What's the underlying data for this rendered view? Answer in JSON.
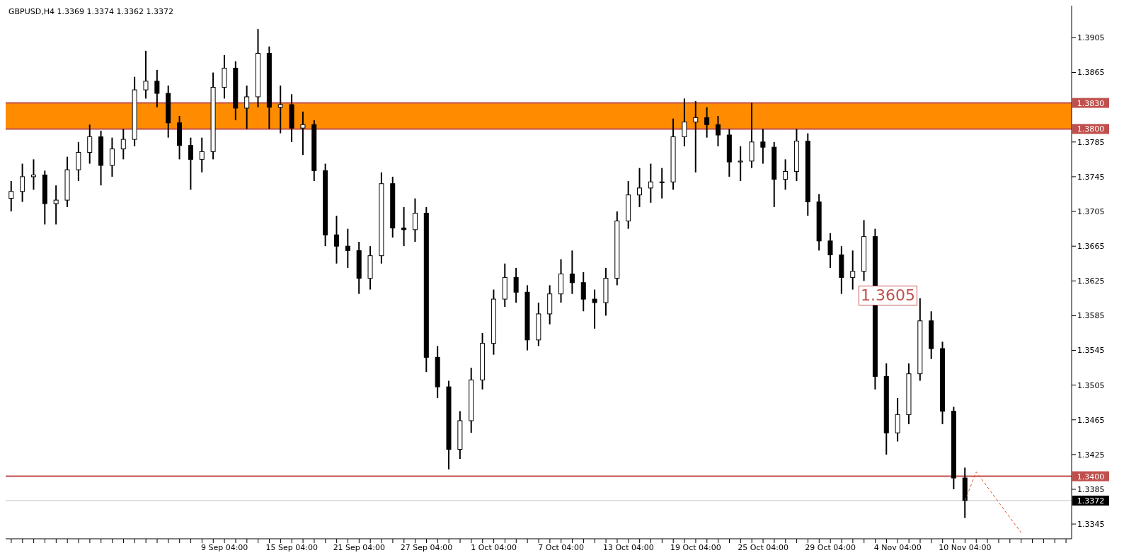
{
  "chart_data": {
    "type": "candlestick",
    "title": "GBPUSD,H4  1.3369 1.3374 1.3362 1.3372",
    "categories": [
      null,
      null,
      null,
      null,
      null,
      null,
      null,
      null,
      null,
      null,
      null,
      null,
      null,
      null,
      null,
      null,
      null,
      null,
      null,
      "9 Sep 04:00",
      null,
      null,
      null,
      null,
      null,
      "15 Sep 04:00",
      null,
      null,
      null,
      null,
      null,
      "21 Sep 04:00",
      null,
      null,
      null,
      null,
      null,
      "27 Sep 04:00",
      null,
      null,
      null,
      null,
      null,
      "1 Oct 04:00",
      null,
      null,
      null,
      null,
      null,
      "7 Oct 04:00",
      null,
      null,
      null,
      null,
      null,
      "13 Oct 04:00",
      null,
      null,
      null,
      null,
      null,
      "19 Oct 04:00",
      null,
      null,
      null,
      null,
      null,
      "25 Oct 04:00",
      null,
      null,
      null,
      null,
      null,
      "29 Oct 04:00",
      null,
      null,
      null,
      null,
      null,
      "4 Nov 04:00",
      null,
      null,
      null,
      null,
      null,
      "10 Nov 04:00",
      null,
      null,
      null,
      null,
      null,
      null,
      null,
      null,
      null
    ],
    "series": [
      {
        "color": "#000000",
        "ohlc": [
          [
            1.372,
            1.374,
            1.3705,
            1.3728
          ],
          [
            1.3728,
            1.376,
            1.3716,
            1.3745
          ],
          [
            1.3745,
            1.3765,
            1.373,
            1.3747
          ],
          [
            1.3747,
            1.3752,
            1.369,
            1.3714
          ],
          [
            1.3714,
            1.3735,
            1.369,
            1.3718
          ],
          [
            1.3718,
            1.3768,
            1.371,
            1.3753
          ],
          [
            1.3753,
            1.3785,
            1.374,
            1.3773
          ],
          [
            1.3773,
            1.3805,
            1.376,
            1.3791
          ],
          [
            1.3791,
            1.3798,
            1.3735,
            1.3758
          ],
          [
            1.3758,
            1.379,
            1.3745,
            1.3777
          ],
          [
            1.3777,
            1.38,
            1.3765,
            1.3788
          ],
          [
            1.3788,
            1.386,
            1.378,
            1.3845
          ],
          [
            1.3845,
            1.389,
            1.3835,
            1.3855
          ],
          [
            1.3855,
            1.3868,
            1.3825,
            1.3841
          ],
          [
            1.3841,
            1.385,
            1.379,
            1.3807
          ],
          [
            1.3807,
            1.3815,
            1.3765,
            1.3781
          ],
          [
            1.3781,
            1.379,
            1.373,
            1.3765
          ],
          [
            1.3765,
            1.379,
            1.375,
            1.3774
          ],
          [
            1.3774,
            1.3865,
            1.3765,
            1.3848
          ],
          [
            1.3848,
            1.3885,
            1.3835,
            1.387
          ],
          [
            1.387,
            1.3878,
            1.381,
            1.3824
          ],
          [
            1.3824,
            1.385,
            1.38,
            1.3837
          ],
          [
            1.3837,
            1.3915,
            1.3825,
            1.3887
          ],
          [
            1.3887,
            1.3895,
            1.38,
            1.3825
          ],
          [
            1.3825,
            1.385,
            1.3795,
            1.3828
          ],
          [
            1.3828,
            1.384,
            1.3785,
            1.3801
          ],
          [
            1.3801,
            1.382,
            1.377,
            1.3805
          ],
          [
            1.3805,
            1.381,
            1.374,
            1.3752
          ],
          [
            1.3752,
            1.376,
            1.3665,
            1.3678
          ],
          [
            1.3678,
            1.37,
            1.3645,
            1.3665
          ],
          [
            1.3665,
            1.3685,
            1.364,
            1.366
          ],
          [
            1.366,
            1.367,
            1.361,
            1.3628
          ],
          [
            1.3628,
            1.3665,
            1.3615,
            1.3654
          ],
          [
            1.3654,
            1.375,
            1.3645,
            1.3737
          ],
          [
            1.3737,
            1.3745,
            1.3675,
            1.3686
          ],
          [
            1.3686,
            1.371,
            1.3665,
            1.3684
          ],
          [
            1.3684,
            1.372,
            1.367,
            1.3703
          ],
          [
            1.3703,
            1.371,
            1.352,
            1.3537
          ],
          [
            1.3537,
            1.355,
            1.349,
            1.3503
          ],
          [
            1.3503,
            1.351,
            1.3408,
            1.3431
          ],
          [
            1.3431,
            1.3475,
            1.342,
            1.3464
          ],
          [
            1.3464,
            1.3525,
            1.345,
            1.3511
          ],
          [
            1.3511,
            1.3565,
            1.35,
            1.3553
          ],
          [
            1.3553,
            1.3615,
            1.354,
            1.3604
          ],
          [
            1.3604,
            1.3645,
            1.3595,
            1.3629
          ],
          [
            1.3629,
            1.364,
            1.36,
            1.3612
          ],
          [
            1.3612,
            1.362,
            1.3545,
            1.3557
          ],
          [
            1.3557,
            1.36,
            1.355,
            1.3587
          ],
          [
            1.3587,
            1.362,
            1.3575,
            1.361
          ],
          [
            1.361,
            1.365,
            1.36,
            1.3633
          ],
          [
            1.3633,
            1.366,
            1.361,
            1.3623
          ],
          [
            1.3623,
            1.3635,
            1.359,
            1.3604
          ],
          [
            1.3604,
            1.3615,
            1.357,
            1.36
          ],
          [
            1.36,
            1.364,
            1.3585,
            1.3628
          ],
          [
            1.3628,
            1.3705,
            1.362,
            1.3694
          ],
          [
            1.3694,
            1.374,
            1.3685,
            1.3724
          ],
          [
            1.3724,
            1.3755,
            1.371,
            1.3732
          ],
          [
            1.3732,
            1.376,
            1.3715,
            1.3739
          ],
          [
            1.3739,
            1.3755,
            1.372,
            1.3739
          ],
          [
            1.3739,
            1.3812,
            1.373,
            1.3791
          ],
          [
            1.3791,
            1.3835,
            1.378,
            1.3808
          ],
          [
            1.3808,
            1.3832,
            1.375,
            1.3813
          ],
          [
            1.3813,
            1.3825,
            1.379,
            1.3805
          ],
          [
            1.3805,
            1.3815,
            1.378,
            1.3793
          ],
          [
            1.3793,
            1.38,
            1.3745,
            1.3762
          ],
          [
            1.3762,
            1.378,
            1.374,
            1.3763
          ],
          [
            1.3763,
            1.383,
            1.3755,
            1.3785
          ],
          [
            1.3785,
            1.38,
            1.376,
            1.3779
          ],
          [
            1.3779,
            1.3785,
            1.371,
            1.3742
          ],
          [
            1.3742,
            1.3765,
            1.373,
            1.3751
          ],
          [
            1.3751,
            1.38,
            1.374,
            1.3786
          ],
          [
            1.3786,
            1.3795,
            1.37,
            1.3716
          ],
          [
            1.3716,
            1.3725,
            1.366,
            1.3671
          ],
          [
            1.3671,
            1.368,
            1.364,
            1.3655
          ],
          [
            1.3655,
            1.3665,
            1.361,
            1.3629
          ],
          [
            1.3629,
            1.366,
            1.3615,
            1.3636
          ],
          [
            1.3636,
            1.3695,
            1.3625,
            1.3676
          ],
          [
            1.3676,
            1.3685,
            1.35,
            1.3515
          ],
          [
            1.3515,
            1.353,
            1.3425,
            1.345
          ],
          [
            1.345,
            1.349,
            1.344,
            1.3471
          ],
          [
            1.3471,
            1.353,
            1.346,
            1.3518
          ],
          [
            1.3518,
            1.3605,
            1.351,
            1.3579
          ],
          [
            1.3579,
            1.359,
            1.3535,
            1.3547
          ],
          [
            1.3547,
            1.3555,
            1.346,
            1.3475
          ],
          [
            1.3475,
            1.348,
            1.3385,
            1.3398
          ],
          [
            1.3398,
            1.341,
            1.3352,
            1.3372
          ],
          null,
          null,
          null,
          null,
          null,
          null,
          null,
          null,
          null
        ]
      },
      {
        "type": "line",
        "color": "#e0502a",
        "line_style": "dashed",
        "values": [
          null,
          null,
          null,
          null,
          null,
          null,
          null,
          null,
          null,
          null,
          null,
          null,
          null,
          null,
          null,
          null,
          null,
          null,
          null,
          null,
          null,
          null,
          null,
          null,
          null,
          null,
          null,
          null,
          null,
          null,
          null,
          null,
          null,
          null,
          null,
          null,
          null,
          null,
          null,
          null,
          null,
          null,
          null,
          null,
          null,
          null,
          null,
          null,
          null,
          null,
          null,
          null,
          null,
          null,
          null,
          null,
          null,
          null,
          null,
          null,
          null,
          null,
          null,
          null,
          null,
          null,
          null,
          null,
          null,
          null,
          null,
          null,
          null,
          null,
          null,
          null,
          null,
          null,
          null,
          null,
          null,
          null,
          null,
          null,
          null,
          1.3372,
          1.3405,
          null,
          null,
          null,
          1.3335,
          null,
          null,
          null,
          null
        ]
      }
    ],
    "ylim": [
      1.3328,
      1.3942
    ],
    "yticks": [
      1.3345,
      1.3385,
      1.3425,
      1.3465,
      1.3505,
      1.3545,
      1.3585,
      1.3625,
      1.3665,
      1.3705,
      1.3745,
      1.3785,
      1.3865,
      1.3905
    ],
    "marker": "none",
    "ref_lines": [
      {
        "axis": "y",
        "value": 1.383,
        "label": "1.3830",
        "color": "#c0504d"
      },
      {
        "axis": "y",
        "value": 1.38,
        "label": "1.3800",
        "color": "#c0504d"
      },
      {
        "axis": "y",
        "value": 1.34,
        "label": "1.3400",
        "color": "#c0504d"
      },
      {
        "axis": "y",
        "value": 1.3372,
        "label": "1.3372",
        "color": "#c0c0c0"
      }
    ],
    "bands": [
      {
        "axis": "y",
        "from": 1.38,
        "to": 1.383,
        "color": "#ff8c00"
      }
    ],
    "annotations": [
      "1.3605"
    ]
  }
}
